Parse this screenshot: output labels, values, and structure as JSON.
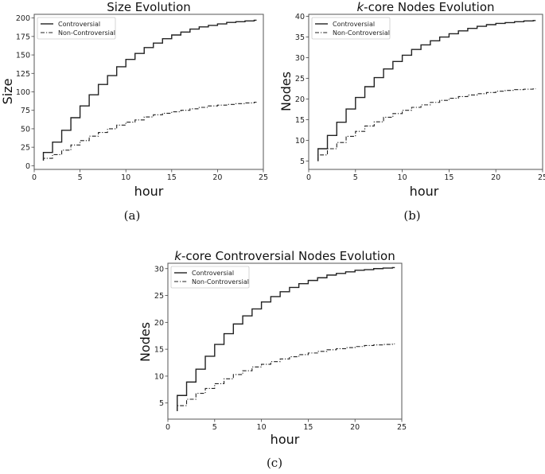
{
  "chart_data": [
    {
      "id": "a",
      "type": "line",
      "style": "step",
      "title": "Size Evolution",
      "title_italic_prefix": "",
      "xlabel": "hour",
      "ylabel": "Size",
      "caption": "(a)",
      "xlim": [
        0,
        25
      ],
      "ylim": [
        -5,
        205
      ],
      "xticks": [
        0,
        5,
        10,
        15,
        20,
        25
      ],
      "yticks": [
        0,
        25,
        50,
        75,
        100,
        125,
        150,
        175,
        200
      ],
      "legend": {
        "position": "upper left",
        "entries": [
          "Controversial",
          "Non-Controversial"
        ]
      },
      "grid": false,
      "x": [
        1,
        2,
        3,
        4,
        5,
        6,
        7,
        8,
        9,
        10,
        11,
        12,
        13,
        14,
        15,
        16,
        17,
        18,
        19,
        20,
        21,
        22,
        23,
        24
      ],
      "series": [
        {
          "name": "Controversial",
          "linestyle": "solid",
          "values": [
            18,
            32,
            48,
            65,
            81,
            96,
            110,
            122,
            134,
            144,
            152,
            160,
            166,
            172,
            177,
            181,
            185,
            188,
            190,
            192,
            194,
            195,
            196,
            197
          ],
          "start_value": 7
        },
        {
          "name": "Non-Controversial",
          "linestyle": "dashdot",
          "values": [
            10,
            15,
            21,
            28,
            34,
            40,
            45,
            50,
            55,
            59,
            62,
            66,
            69,
            71,
            73,
            75,
            77,
            79,
            81,
            82,
            83,
            84,
            85,
            86
          ],
          "start_value": 7
        }
      ]
    },
    {
      "id": "b",
      "type": "line",
      "style": "step",
      "title": "-core Nodes Evolution",
      "title_italic_prefix": "k",
      "xlabel": "hour",
      "ylabel": "Nodes",
      "caption": "(b)",
      "xlim": [
        0,
        25
      ],
      "ylim": [
        3,
        40.5
      ],
      "xticks": [
        0,
        5,
        10,
        15,
        20,
        25
      ],
      "yticks": [
        5,
        10,
        15,
        20,
        25,
        30,
        35,
        40
      ],
      "legend": {
        "position": "upper left",
        "entries": [
          "Controversial",
          "Non-Controversial"
        ]
      },
      "grid": false,
      "x": [
        1,
        2,
        3,
        4,
        5,
        6,
        7,
        8,
        9,
        10,
        11,
        12,
        13,
        14,
        15,
        16,
        17,
        18,
        19,
        20,
        21,
        22,
        23,
        24
      ],
      "series": [
        {
          "name": "Controversial",
          "linestyle": "solid",
          "values": [
            8.0,
            11.2,
            14.4,
            17.6,
            20.4,
            23.0,
            25.2,
            27.3,
            29.1,
            30.6,
            32.0,
            33.1,
            34.1,
            35.0,
            35.8,
            36.5,
            37.1,
            37.6,
            38.0,
            38.3,
            38.5,
            38.7,
            38.9,
            39.0
          ],
          "start_value": 5
        },
        {
          "name": "Non-Controversial",
          "linestyle": "dashdot",
          "values": [
            6.5,
            8.0,
            9.5,
            11.0,
            12.2,
            13.5,
            14.5,
            15.6,
            16.5,
            17.3,
            18.0,
            18.6,
            19.2,
            19.7,
            20.2,
            20.6,
            21.0,
            21.3,
            21.6,
            21.9,
            22.1,
            22.3,
            22.4,
            22.5
          ],
          "start_value": 5
        }
      ]
    },
    {
      "id": "c",
      "type": "line",
      "style": "step",
      "title": "-core Controversial Nodes Evolution",
      "title_italic_prefix": "k",
      "xlabel": "hour",
      "ylabel": "Nodes",
      "caption": "(c)",
      "xlim": [
        0,
        25
      ],
      "ylim": [
        2,
        31
      ],
      "xticks": [
        0,
        5,
        10,
        15,
        20,
        25
      ],
      "yticks": [
        5,
        10,
        15,
        20,
        25,
        30
      ],
      "legend": {
        "position": "upper left",
        "entries": [
          "Controversial",
          "Non-Controversial"
        ]
      },
      "grid": false,
      "x": [
        1,
        2,
        3,
        4,
        5,
        6,
        7,
        8,
        9,
        10,
        11,
        12,
        13,
        14,
        15,
        16,
        17,
        18,
        19,
        20,
        21,
        22,
        23,
        24
      ],
      "series": [
        {
          "name": "Controversial",
          "linestyle": "solid",
          "values": [
            6.4,
            8.9,
            11.3,
            13.7,
            15.9,
            17.9,
            19.7,
            21.2,
            22.5,
            23.8,
            24.8,
            25.7,
            26.5,
            27.2,
            27.8,
            28.3,
            28.8,
            29.1,
            29.4,
            29.7,
            29.8,
            30.0,
            30.1,
            30.2
          ],
          "start_value": 3.5
        },
        {
          "name": "Non-Controversial",
          "linestyle": "dashdot",
          "values": [
            4.5,
            5.7,
            6.8,
            7.7,
            8.6,
            9.5,
            10.3,
            11.0,
            11.7,
            12.2,
            12.7,
            13.2,
            13.6,
            14.0,
            14.3,
            14.6,
            14.9,
            15.1,
            15.3,
            15.5,
            15.7,
            15.8,
            15.9,
            16.0
          ],
          "start_value": 3.5
        }
      ]
    }
  ]
}
